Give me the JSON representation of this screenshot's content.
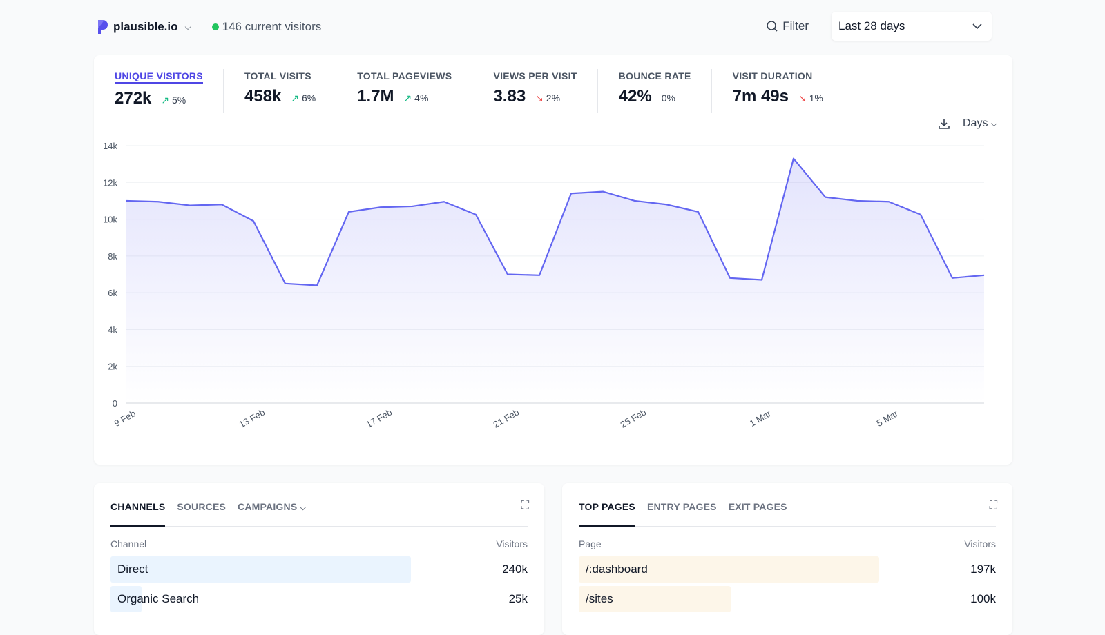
{
  "header": {
    "site": "plausible.io",
    "current_visitors": "146 current visitors",
    "filter_label": "Filter",
    "period": "Last 28 days"
  },
  "metrics": [
    {
      "label": "UNIQUE VISITORS",
      "value": "272k",
      "change": "5%",
      "direction": "up",
      "active": true
    },
    {
      "label": "TOTAL VISITS",
      "value": "458k",
      "change": "6%",
      "direction": "up"
    },
    {
      "label": "TOTAL PAGEVIEWS",
      "value": "1.7M",
      "change": "4%",
      "direction": "up"
    },
    {
      "label": "VIEWS PER VISIT",
      "value": "3.83",
      "change": "2%",
      "direction": "down"
    },
    {
      "label": "BOUNCE RATE",
      "value": "42%",
      "change": "0%",
      "direction": "none"
    },
    {
      "label": "VISIT DURATION",
      "value": "7m 49s",
      "change": "1%",
      "direction": "down"
    }
  ],
  "chart_controls": {
    "interval": "Days"
  },
  "chart_data": {
    "type": "area",
    "color": "#6366f1",
    "ylim": [
      0,
      14000
    ],
    "yticks": [
      "0",
      "2k",
      "4k",
      "6k",
      "8k",
      "10k",
      "12k",
      "14k"
    ],
    "yticks_values": [
      0,
      2000,
      4000,
      6000,
      8000,
      10000,
      12000,
      14000
    ],
    "xtick_labels": [
      "9 Feb",
      "13 Feb",
      "17 Feb",
      "21 Feb",
      "25 Feb",
      "1 Mar",
      "5 Mar"
    ],
    "grid": true,
    "x": [
      "9 Feb",
      "10 Feb",
      "11 Feb",
      "12 Feb",
      "13 Feb",
      "14 Feb",
      "15 Feb",
      "16 Feb",
      "17 Feb",
      "18 Feb",
      "19 Feb",
      "20 Feb",
      "21 Feb",
      "22 Feb",
      "23 Feb",
      "24 Feb",
      "25 Feb",
      "26 Feb",
      "27 Feb",
      "28 Feb",
      "1 Mar",
      "2 Mar",
      "3 Mar",
      "4 Mar",
      "5 Mar",
      "6 Mar",
      "7 Mar",
      "8 Mar"
    ],
    "values": [
      11000,
      10950,
      10750,
      10800,
      9900,
      6500,
      6400,
      10400,
      10650,
      10700,
      10950,
      10250,
      7000,
      6950,
      11400,
      11500,
      11000,
      10800,
      10400,
      6800,
      6700,
      13300,
      11200,
      11000,
      10950,
      10250,
      6800,
      6950
    ]
  },
  "channels": {
    "tabs": [
      "CHANNELS",
      "SOURCES",
      "CAMPAIGNS"
    ],
    "col_label": "Channel",
    "col_value": "Visitors",
    "rows": [
      {
        "label": "Direct",
        "value": "240k",
        "fraction": 0.72
      },
      {
        "label": "Organic Search",
        "value": "25k",
        "fraction": 0.075
      }
    ]
  },
  "pages": {
    "tabs": [
      "TOP PAGES",
      "ENTRY PAGES",
      "EXIT PAGES"
    ],
    "col_label": "Page",
    "col_value": "Visitors",
    "rows": [
      {
        "label": "/:dashboard",
        "value": "197k",
        "fraction": 0.72
      },
      {
        "label": "/sites",
        "value": "100k",
        "fraction": 0.365
      }
    ]
  }
}
